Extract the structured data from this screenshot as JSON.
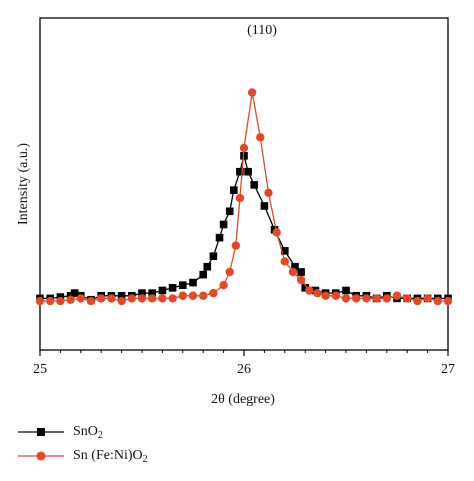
{
  "chart_data": {
    "type": "line",
    "title": "",
    "xlabel": "2θ (degree)",
    "ylabel": "Intensity (a.u.)",
    "xlim": [
      25,
      27
    ],
    "ylim": [
      0,
      100
    ],
    "x_ticks": [
      "25",
      "26",
      "27"
    ],
    "y_ticks_shown": false,
    "grid": false,
    "legend_position": "below-left",
    "annotations": [
      {
        "text": "(110)",
        "x": 26.08,
        "y": 105
      }
    ],
    "series": [
      {
        "name": "SnO2",
        "name_main": "SnO",
        "name_sub": "2",
        "marker": "square",
        "color": "#000000",
        "x": [
          25.0,
          25.05,
          25.1,
          25.15,
          25.17,
          25.2,
          25.25,
          25.3,
          25.35,
          25.4,
          25.45,
          25.5,
          25.55,
          25.6,
          25.65,
          25.7,
          25.75,
          25.8,
          25.82,
          25.85,
          25.88,
          25.9,
          25.93,
          25.95,
          25.98,
          26.0,
          26.02,
          26.05,
          26.1,
          26.15,
          26.2,
          26.25,
          26.28,
          26.3,
          26.35,
          26.4,
          26.45,
          26.5,
          26.55,
          26.6,
          26.65,
          26.7,
          26.75,
          26.8,
          26.85,
          26.9,
          26.95,
          27.0
        ],
        "y": [
          15,
          15,
          15.5,
          16,
          17,
          16,
          14.5,
          16,
          16,
          16,
          16,
          17,
          17,
          18,
          19,
          20,
          21,
          24,
          27,
          31,
          38,
          43,
          48,
          56,
          63,
          69,
          63,
          58,
          50,
          41,
          33,
          27,
          25,
          19,
          18,
          17,
          17,
          18,
          16,
          16,
          15,
          16,
          15,
          15,
          15,
          15,
          15,
          15
        ]
      },
      {
        "name": "Sn (Fe:Ni)O2",
        "name_main": "Sn (Fe:Ni)O",
        "name_sub": "2",
        "marker": "circle",
        "color": "#e04a2a",
        "x": [
          25.0,
          25.05,
          25.1,
          25.15,
          25.2,
          25.25,
          25.3,
          25.35,
          25.4,
          25.45,
          25.5,
          25.55,
          25.6,
          25.65,
          25.7,
          25.75,
          25.8,
          25.85,
          25.9,
          25.93,
          25.96,
          25.98,
          26.0,
          26.04,
          26.08,
          26.12,
          26.16,
          26.2,
          26.24,
          26.28,
          26.32,
          26.36,
          26.4,
          26.45,
          26.5,
          26.55,
          26.6,
          26.65,
          26.7,
          26.75,
          26.8,
          26.85,
          26.9,
          26.95,
          27.0
        ],
        "y": [
          14,
          14,
          14,
          14.5,
          15,
          14,
          15,
          15,
          14,
          15,
          15,
          15,
          15,
          15,
          16,
          16,
          16,
          17,
          20,
          25,
          35,
          53,
          72,
          93,
          76,
          55,
          40,
          29,
          25,
          22,
          18,
          17,
          16,
          16,
          15,
          15,
          15,
          15,
          15,
          16,
          15,
          14,
          15,
          14,
          14
        ]
      }
    ]
  }
}
